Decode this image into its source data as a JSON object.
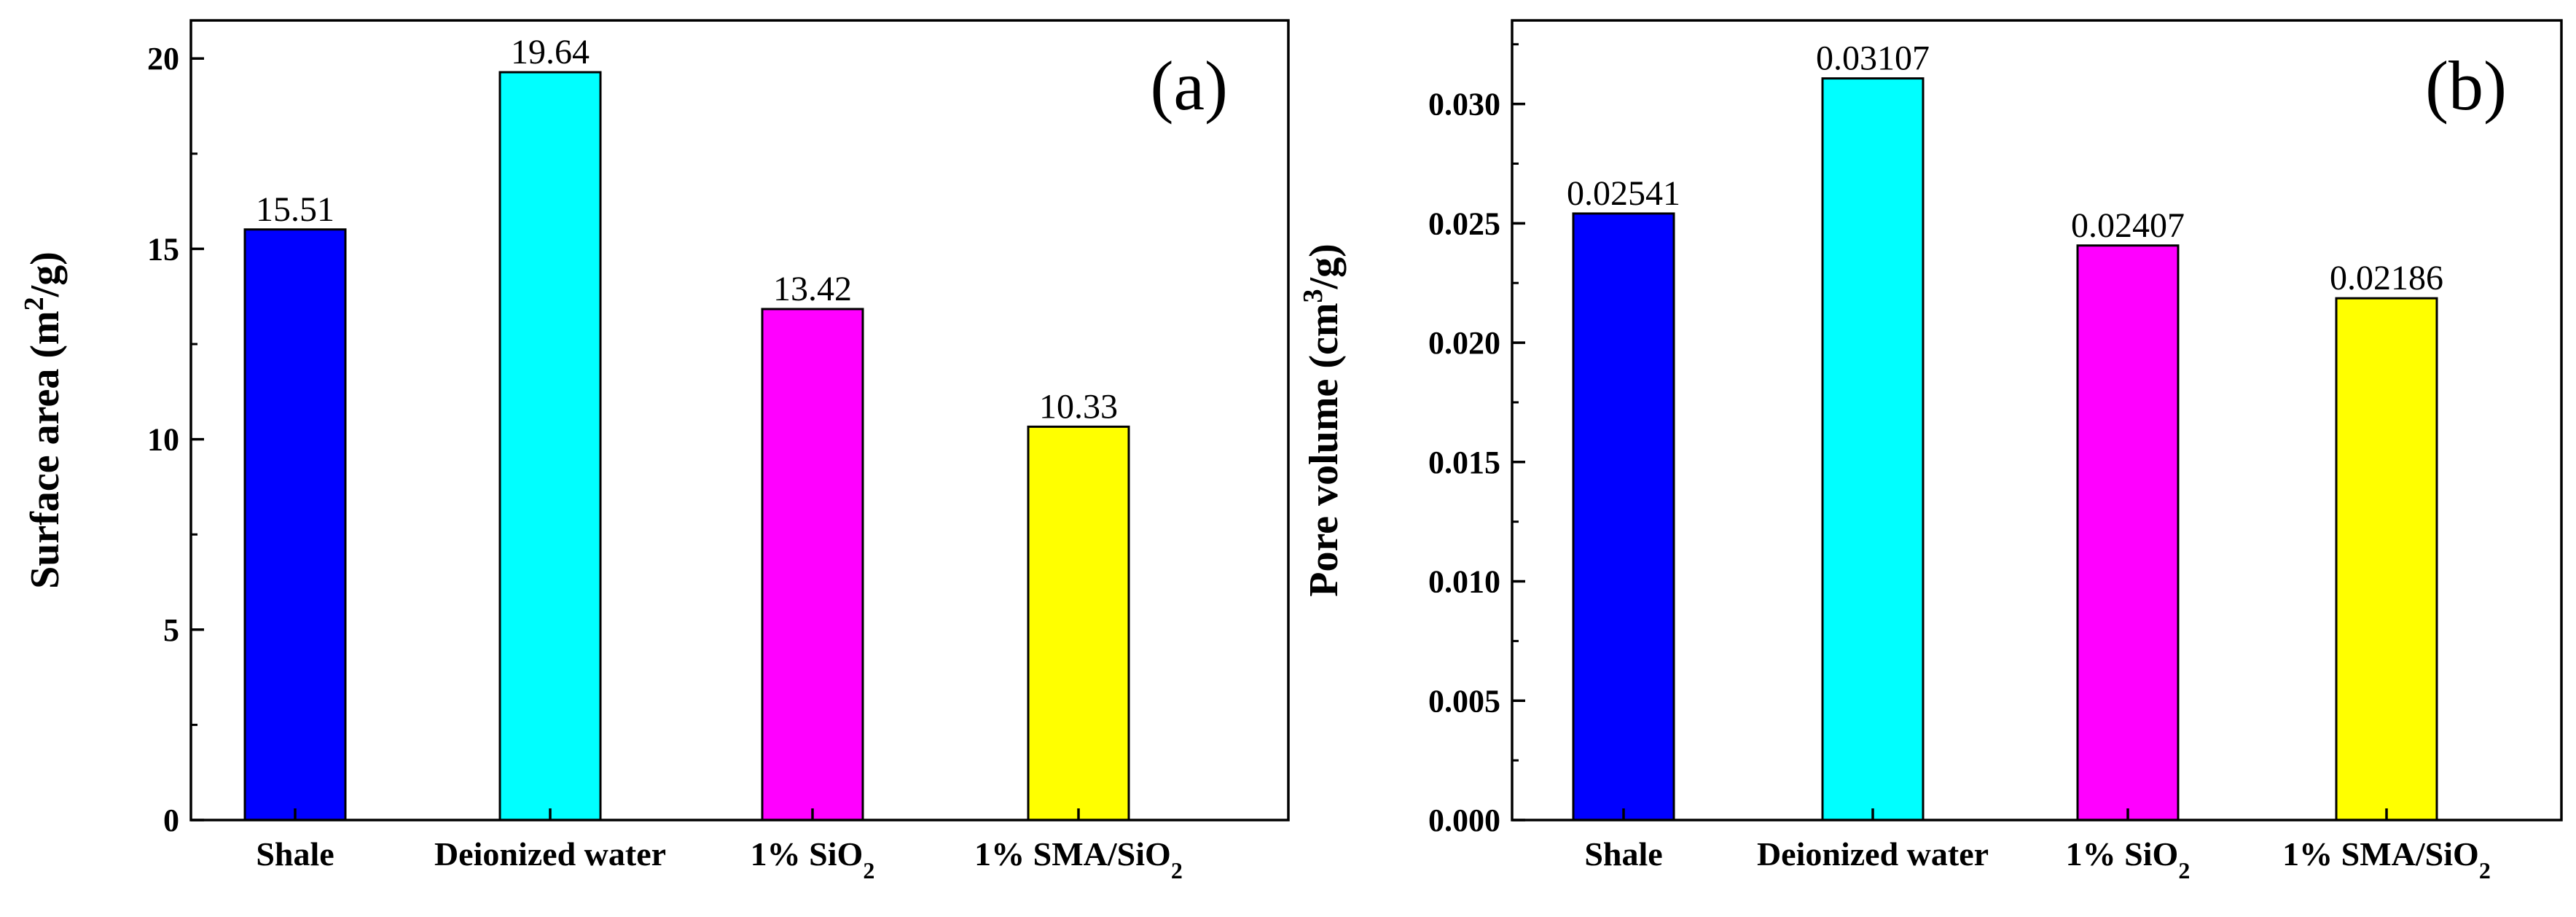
{
  "chart_data": [
    {
      "type": "bar",
      "panel_label": "(a)",
      "categories": [
        {
          "main": "Shale",
          "sub": "",
          "tail": ""
        },
        {
          "main": "Deionized water",
          "sub": "",
          "tail": ""
        },
        {
          "main": "1% SiO",
          "sub": "2",
          "tail": ""
        },
        {
          "main": "1% SMA/SiO",
          "sub": "2",
          "tail": ""
        }
      ],
      "values": [
        15.51,
        19.64,
        13.42,
        10.33
      ],
      "value_labels": [
        "15.51",
        "19.64",
        "13.42",
        "10.33"
      ],
      "colors": [
        "#0000ff",
        "#00ffff",
        "#ff00ff",
        "#ffff00"
      ],
      "ylabel": {
        "main": "Surface area (m",
        "sup": "2",
        "tail": "/g)"
      },
      "ylim": [
        0,
        21
      ],
      "yticks": [
        0,
        5,
        10,
        15,
        20
      ],
      "ytick_labels": [
        "0",
        "5",
        "10",
        "15",
        "20"
      ],
      "yminor_step": 2.5,
      "xlabel": "",
      "grid": false
    },
    {
      "type": "bar",
      "panel_label": "(b)",
      "categories": [
        {
          "main": "Shale",
          "sub": "",
          "tail": ""
        },
        {
          "main": "Deionized water",
          "sub": "",
          "tail": ""
        },
        {
          "main": "1% SiO",
          "sub": "2",
          "tail": ""
        },
        {
          "main": "1% SMA/SiO",
          "sub": "2",
          "tail": ""
        }
      ],
      "values": [
        0.02541,
        0.03107,
        0.02407,
        0.02186
      ],
      "value_labels": [
        "0.02541",
        "0.03107",
        "0.02407",
        "0.02186"
      ],
      "colors": [
        "#0000ff",
        "#00ffff",
        "#ff00ff",
        "#ffff00"
      ],
      "ylabel": {
        "main": "Pore volume (cm",
        "sup": "3",
        "tail": "/g)"
      },
      "ylim": [
        0,
        0.0335
      ],
      "yticks": [
        0.0,
        0.005,
        0.01,
        0.015,
        0.02,
        0.025,
        0.03
      ],
      "ytick_labels": [
        "0.000",
        "0.005",
        "0.010",
        "0.015",
        "0.020",
        "0.025",
        "0.030"
      ],
      "yminor_step": 0.0025,
      "xlabel": "",
      "grid": false
    }
  ]
}
